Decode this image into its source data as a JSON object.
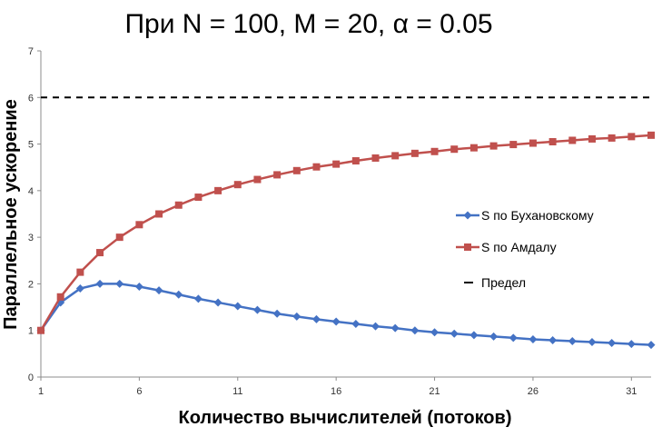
{
  "chart_data": {
    "type": "line",
    "title": "При N = 100, M = 20, α = 0.05",
    "xlabel": "Количество вычислителей (потоков)",
    "ylabel": "Параллельное ускорение",
    "xlim": [
      1,
      32
    ],
    "ylim": [
      0,
      7
    ],
    "x_ticks": [
      1,
      6,
      11,
      16,
      21,
      26,
      31
    ],
    "y_ticks": [
      0,
      1,
      2,
      3,
      4,
      5,
      6,
      7
    ],
    "grid": false,
    "legend_position": "right",
    "x": [
      1,
      2,
      3,
      4,
      5,
      6,
      7,
      8,
      9,
      10,
      11,
      12,
      13,
      14,
      15,
      16,
      17,
      18,
      19,
      20,
      21,
      22,
      23,
      24,
      25,
      26,
      27,
      28,
      29,
      30,
      31,
      32
    ],
    "series": [
      {
        "name": "S по Бухановскому",
        "color": "#4472C4",
        "marker": "diamond",
        "values": [
          1.0,
          1.6,
          1.9,
          2.0,
          2.0,
          1.94,
          1.86,
          1.77,
          1.68,
          1.6,
          1.52,
          1.44,
          1.36,
          1.3,
          1.24,
          1.19,
          1.14,
          1.09,
          1.05,
          1.0,
          0.96,
          0.93,
          0.9,
          0.87,
          0.84,
          0.81,
          0.79,
          0.77,
          0.75,
          0.73,
          0.71,
          0.69
        ]
      },
      {
        "name": "S по Амдалу",
        "color": "#C0504D",
        "marker": "square",
        "values": [
          1.0,
          1.72,
          2.25,
          2.67,
          3.0,
          3.27,
          3.5,
          3.69,
          3.86,
          4.0,
          4.13,
          4.24,
          4.34,
          4.43,
          4.51,
          4.57,
          4.64,
          4.7,
          4.75,
          4.8,
          4.84,
          4.89,
          4.92,
          4.96,
          4.99,
          5.02,
          5.05,
          5.08,
          5.11,
          5.13,
          5.16,
          5.19
        ]
      },
      {
        "name": "Предел",
        "color": "#000000",
        "style": "dashed",
        "constant": 6
      }
    ]
  }
}
